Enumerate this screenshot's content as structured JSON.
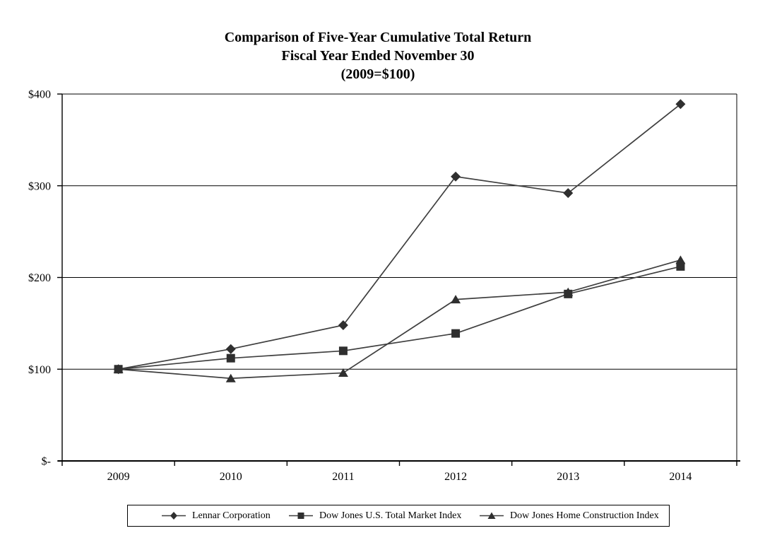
{
  "chart_data": {
    "type": "line",
    "title": "Comparison of Five-Year Cumulative Total Return",
    "subtitle1": "Fiscal Year Ended November 30",
    "subtitle2": "(2009=$100)",
    "categories": [
      "2009",
      "2010",
      "2011",
      "2012",
      "2013",
      "2014"
    ],
    "series": [
      {
        "name": "Lennar Corporation",
        "marker": "diamond",
        "values": [
          100,
          122,
          148,
          310,
          292,
          389
        ]
      },
      {
        "name": "Dow Jones U.S. Total Market Index",
        "marker": "square",
        "values": [
          100,
          112,
          120,
          139,
          182,
          212
        ]
      },
      {
        "name": "Dow Jones Home Construction Index",
        "marker": "triangle",
        "values": [
          100,
          90,
          96,
          176,
          184,
          219
        ]
      }
    ],
    "y_axis": {
      "min": 0,
      "max": 400,
      "tick_values": [
        0,
        100,
        200,
        300,
        400
      ],
      "tick_labels": [
        "$-",
        "$100",
        "$200",
        "$300",
        "$400"
      ]
    },
    "grid": "horizontal",
    "legend_position": "bottom",
    "colors": {
      "line": "#3f3f3f",
      "marker": "#2f2f2f",
      "axis": "#000000",
      "text": "#000000"
    }
  }
}
